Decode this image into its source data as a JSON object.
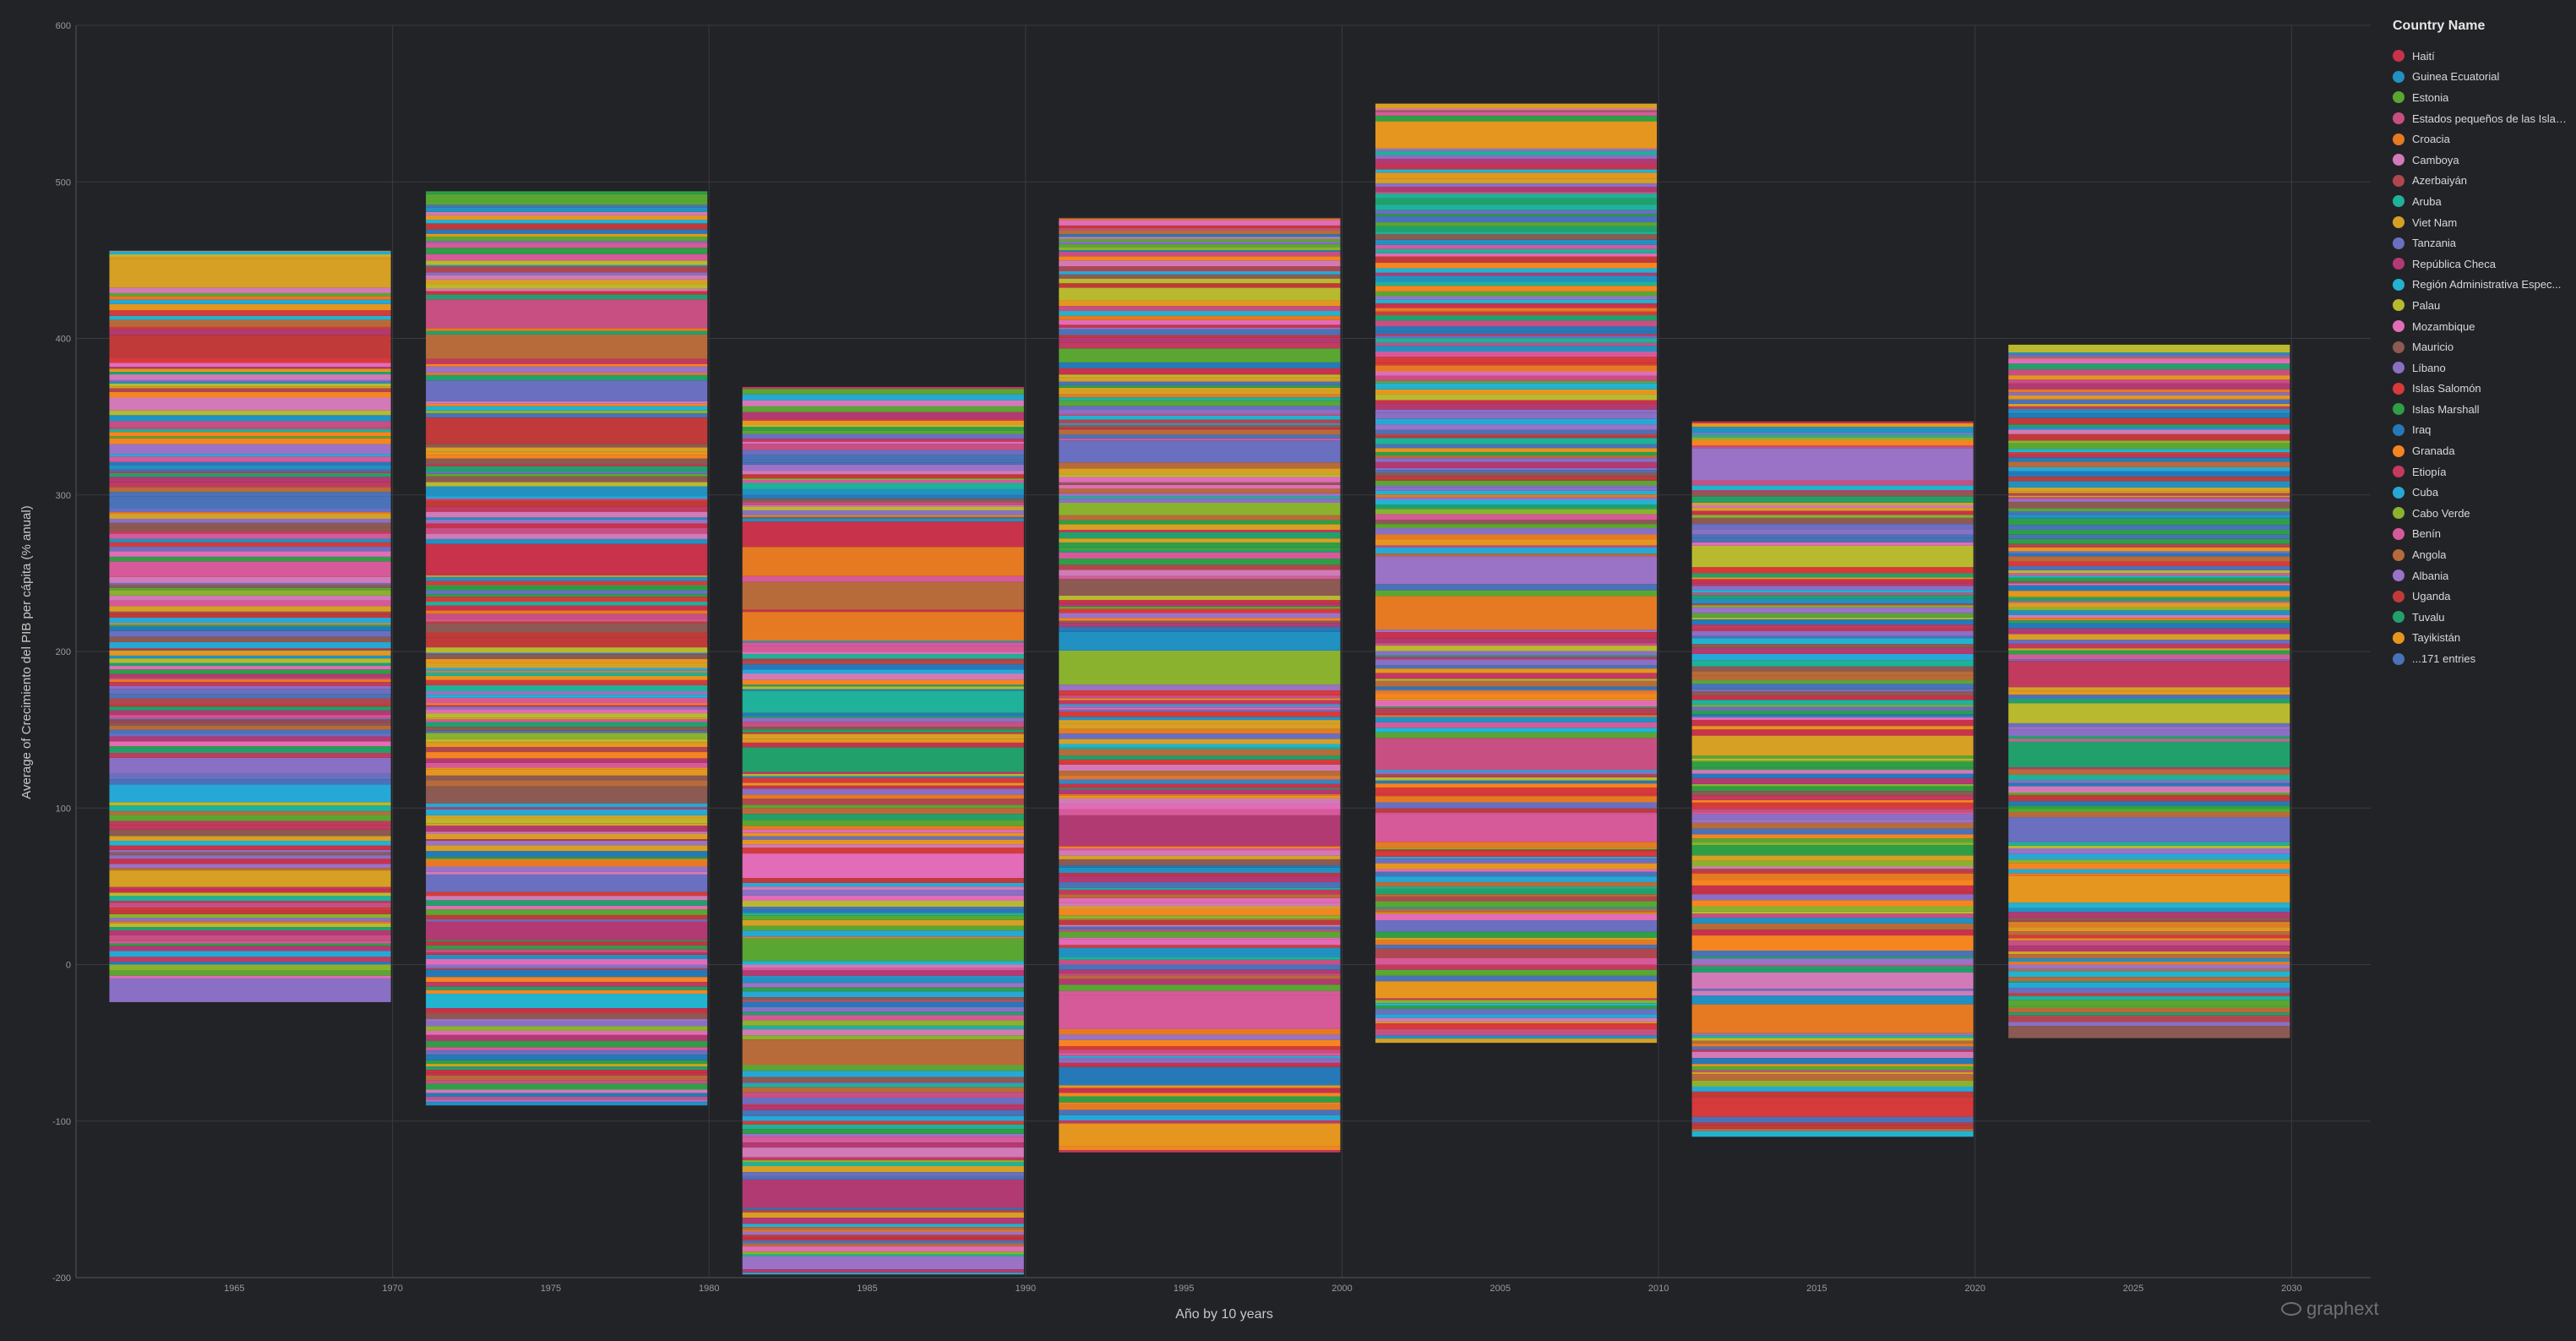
{
  "chart_data": {
    "type": "bar",
    "stacked": true,
    "xlabel": "Año by 10 years",
    "ylabel": "Average of Crecimiento del PIB per cápita (% anual)",
    "ylim": [
      -200,
      600
    ],
    "yticks": [
      -200,
      -100,
      0,
      100,
      200,
      300,
      400,
      500,
      600
    ],
    "xlim": [
      1960,
      2032.5
    ],
    "xticks": [
      1965,
      1970,
      1975,
      1980,
      1985,
      1990,
      1995,
      2000,
      2005,
      2010,
      2015,
      2020,
      2025,
      2030
    ],
    "bins": [
      {
        "start": 1961,
        "end": 1970,
        "min": -24,
        "max": 456
      },
      {
        "start": 1971,
        "end": 1980,
        "min": -90,
        "max": 494
      },
      {
        "start": 1981,
        "end": 1990,
        "min": -198,
        "max": 369
      },
      {
        "start": 1991,
        "end": 2000,
        "min": -120,
        "max": 477
      },
      {
        "start": 2001,
        "end": 2010,
        "min": -50,
        "max": 550
      },
      {
        "start": 2011,
        "end": 2020,
        "min": -110,
        "max": 347
      },
      {
        "start": 2021,
        "end": 2030,
        "min": -47,
        "max": 396
      }
    ],
    "grid": true,
    "legend_position": "right"
  },
  "legend": {
    "title": "Country Name",
    "items": [
      {
        "label": "Haití",
        "color": "#c8324a"
      },
      {
        "label": "Guinea Ecuatorial",
        "color": "#2191c2"
      },
      {
        "label": "Estonia",
        "color": "#5aa632"
      },
      {
        "label": "Estados pequeños de las Islas ...",
        "color": "#c74f82"
      },
      {
        "label": "Croacia",
        "color": "#e57a23"
      },
      {
        "label": "Camboya",
        "color": "#d27ab8"
      },
      {
        "label": "Azerbaiyán",
        "color": "#b0474f"
      },
      {
        "label": "Aruba",
        "color": "#1fb19a"
      },
      {
        "label": "Viet Nam",
        "color": "#d6a025"
      },
      {
        "label": "Tanzania",
        "color": "#6a6fc0"
      },
      {
        "label": "República Checa",
        "color": "#b23a72"
      },
      {
        "label": "Región Administrativa Espec...",
        "color": "#22b3d0"
      },
      {
        "label": "Palau",
        "color": "#b9b92f"
      },
      {
        "label": "Mozambique",
        "color": "#e26cb8"
      },
      {
        "label": "Mauricio",
        "color": "#8c5a52"
      },
      {
        "label": "Líbano",
        "color": "#8a70c4"
      },
      {
        "label": "Islas Salomón",
        "color": "#d63a3a"
      },
      {
        "label": "Islas Marshall",
        "color": "#2e9e47"
      },
      {
        "label": "Iraq",
        "color": "#2679b8"
      },
      {
        "label": "Granada",
        "color": "#f58521"
      },
      {
        "label": "Etiopía",
        "color": "#c23a5e"
      },
      {
        "label": "Cuba",
        "color": "#26a8d6"
      },
      {
        "label": "Cabo Verde",
        "color": "#8ab22f"
      },
      {
        "label": "Benín",
        "color": "#d65a9a"
      },
      {
        "label": "Angola",
        "color": "#b86b3a"
      },
      {
        "label": "Albania",
        "color": "#9a72c6"
      },
      {
        "label": "Uganda",
        "color": "#c03a3a"
      },
      {
        "label": "Tuvalu",
        "color": "#22a06b"
      },
      {
        "label": "Tayikistán",
        "color": "#e5961f"
      },
      {
        "label": "...171 entries",
        "color": "#4a72b8"
      }
    ]
  },
  "brand": "graphext"
}
